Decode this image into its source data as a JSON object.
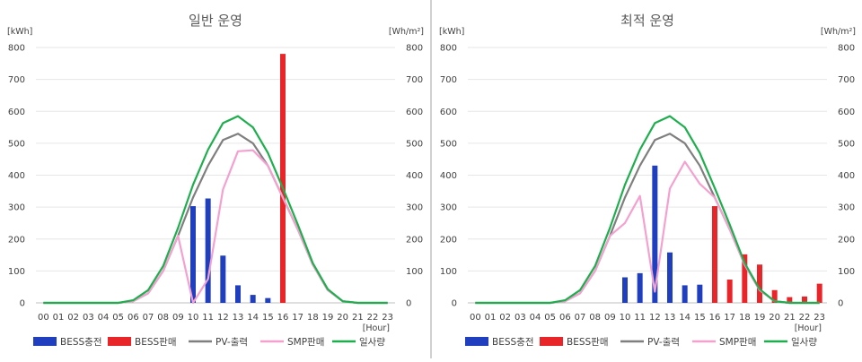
{
  "charts": [
    {
      "title": "일반 운영",
      "chart_data": {
        "type": "bar+line",
        "title": "일반 운영",
        "y_left_label": "[kWh]",
        "y_right_label": "[Wh/m²]",
        "x_unit_label": "[Hour]",
        "ylim": [
          0,
          800
        ],
        "y_ticks": [
          "0",
          "100",
          "200",
          "300",
          "400",
          "500",
          "600",
          "700",
          "800"
        ],
        "categories": [
          "00",
          "01",
          "02",
          "03",
          "04",
          "05",
          "06",
          "07",
          "08",
          "09",
          "10",
          "11",
          "12",
          "13",
          "14",
          "15",
          "16",
          "17",
          "18",
          "19",
          "20",
          "21",
          "22",
          "23"
        ],
        "series": [
          {
            "name": "BESS충전",
            "kind": "bar",
            "color": "#1f3fbf",
            "values": [
              0,
              0,
              0,
              0,
              0,
              0,
              0,
              0,
              0,
              0,
              303,
              327,
              148,
              55,
              25,
              15,
              0,
              0,
              0,
              0,
              0,
              0,
              0,
              0
            ]
          },
          {
            "name": "BESS판매",
            "kind": "bar",
            "color": "#e8262a",
            "values": [
              0,
              0,
              0,
              0,
              0,
              0,
              0,
              0,
              0,
              0,
              0,
              0,
              0,
              0,
              0,
              0,
              780,
              0,
              0,
              0,
              0,
              0,
              0,
              0
            ]
          },
          {
            "name": "PV-출력",
            "kind": "line",
            "color": "#7f7f7f",
            "values": [
              0,
              0,
              0,
              0,
              0,
              0,
              5,
              30,
              100,
              210,
              330,
              430,
              510,
              530,
              500,
              430,
              330,
              230,
              120,
              40,
              5,
              0,
              0,
              0
            ]
          },
          {
            "name": "SMP판매",
            "kind": "line",
            "color": "#f4a1d0",
            "values": [
              0,
              0,
              0,
              0,
              0,
              0,
              5,
              30,
              100,
              210,
              0,
              75,
              355,
              475,
              478,
              430,
              330,
              230,
              120,
              40,
              5,
              0,
              0,
              0
            ]
          },
          {
            "name": "일사량",
            "kind": "line",
            "color": "#1fae4e",
            "values": [
              0,
              0,
              0,
              0,
              0,
              0,
              8,
              40,
              115,
              235,
              370,
              480,
              563,
              585,
              550,
              470,
              360,
              245,
              125,
              43,
              5,
              0,
              0,
              0
            ]
          }
        ]
      }
    },
    {
      "title": "최적 운영",
      "chart_data": {
        "type": "bar+line",
        "title": "최적 운영",
        "y_left_label": "[kWh]",
        "y_right_label": "[Wh/m²]",
        "x_unit_label": "[Hour]",
        "ylim": [
          0,
          800
        ],
        "y_ticks": [
          "0",
          "100",
          "200",
          "300",
          "400",
          "500",
          "600",
          "700",
          "800"
        ],
        "categories": [
          "00",
          "01",
          "02",
          "03",
          "04",
          "05",
          "06",
          "07",
          "08",
          "09",
          "10",
          "11",
          "12",
          "13",
          "14",
          "15",
          "16",
          "17",
          "18",
          "19",
          "20",
          "21",
          "22",
          "23"
        ],
        "series": [
          {
            "name": "BESS충전",
            "kind": "bar",
            "color": "#1f3fbf",
            "values": [
              0,
              0,
              0,
              0,
              0,
              0,
              0,
              0,
              0,
              0,
              80,
              93,
              430,
              158,
              55,
              57,
              0,
              0,
              0,
              0,
              0,
              0,
              0,
              0
            ]
          },
          {
            "name": "BESS판매",
            "kind": "bar",
            "color": "#e8262a",
            "values": [
              0,
              0,
              0,
              0,
              0,
              0,
              0,
              0,
              0,
              0,
              0,
              0,
              0,
              0,
              0,
              0,
              303,
              73,
              152,
              120,
              40,
              18,
              20,
              60
            ]
          },
          {
            "name": "PV-출력",
            "kind": "line",
            "color": "#7f7f7f",
            "values": [
              0,
              0,
              0,
              0,
              0,
              0,
              5,
              30,
              100,
              210,
              330,
              430,
              510,
              530,
              500,
              430,
              330,
              230,
              120,
              40,
              5,
              0,
              0,
              0
            ]
          },
          {
            "name": "SMP판매",
            "kind": "line",
            "color": "#f4a1d0",
            "values": [
              0,
              0,
              0,
              0,
              0,
              0,
              5,
              30,
              100,
              210,
              250,
              335,
              35,
              358,
              442,
              373,
              330,
              230,
              120,
              40,
              5,
              0,
              0,
              0
            ]
          },
          {
            "name": "일사량",
            "kind": "line",
            "color": "#1fae4e",
            "values": [
              0,
              0,
              0,
              0,
              0,
              0,
              8,
              40,
              115,
              235,
              370,
              480,
              563,
              585,
              550,
              470,
              360,
              245,
              125,
              43,
              5,
              0,
              0,
              0
            ]
          }
        ]
      }
    }
  ]
}
